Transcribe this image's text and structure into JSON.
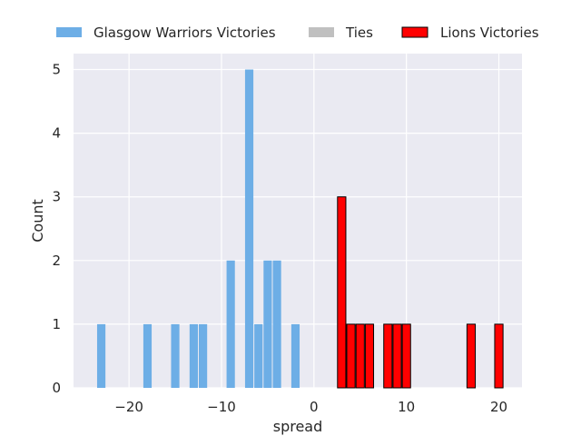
{
  "chart_data": {
    "type": "bar",
    "xlabel": "spread",
    "ylabel": "Count",
    "xlim": [
      -26,
      22.5
    ],
    "ylim": [
      0,
      5.25
    ],
    "bin_width": 1,
    "xticks": [
      -20,
      -10,
      0,
      10,
      20
    ],
    "xtick_labels": [
      "−20",
      "−10",
      "0",
      "10",
      "20"
    ],
    "yticks": [
      0,
      1,
      2,
      3,
      4,
      5
    ],
    "ytick_labels": [
      "0",
      "1",
      "2",
      "3",
      "4",
      "5"
    ],
    "grid": true,
    "legend_position": "top",
    "background": "#eaeaf2",
    "series": [
      {
        "name": "Glasgow Warriors Victories",
        "color": "#6daee6",
        "edge": "none",
        "x": [
          -23,
          -18,
          -15,
          -13,
          -12,
          -9,
          -7,
          -6,
          -5,
          -4,
          -2
        ],
        "values": [
          1,
          1,
          1,
          1,
          1,
          2,
          5,
          1,
          2,
          2,
          1
        ]
      },
      {
        "name": "Ties",
        "color": "#c0c0c0",
        "edge": "none",
        "x": [],
        "values": []
      },
      {
        "name": "Lions Victories",
        "color": "#ff0000",
        "edge": "#000000",
        "x": [
          3,
          4,
          5,
          6,
          8,
          9,
          10,
          17,
          20
        ],
        "values": [
          3,
          1,
          1,
          1,
          1,
          1,
          1,
          1,
          1
        ]
      }
    ]
  }
}
